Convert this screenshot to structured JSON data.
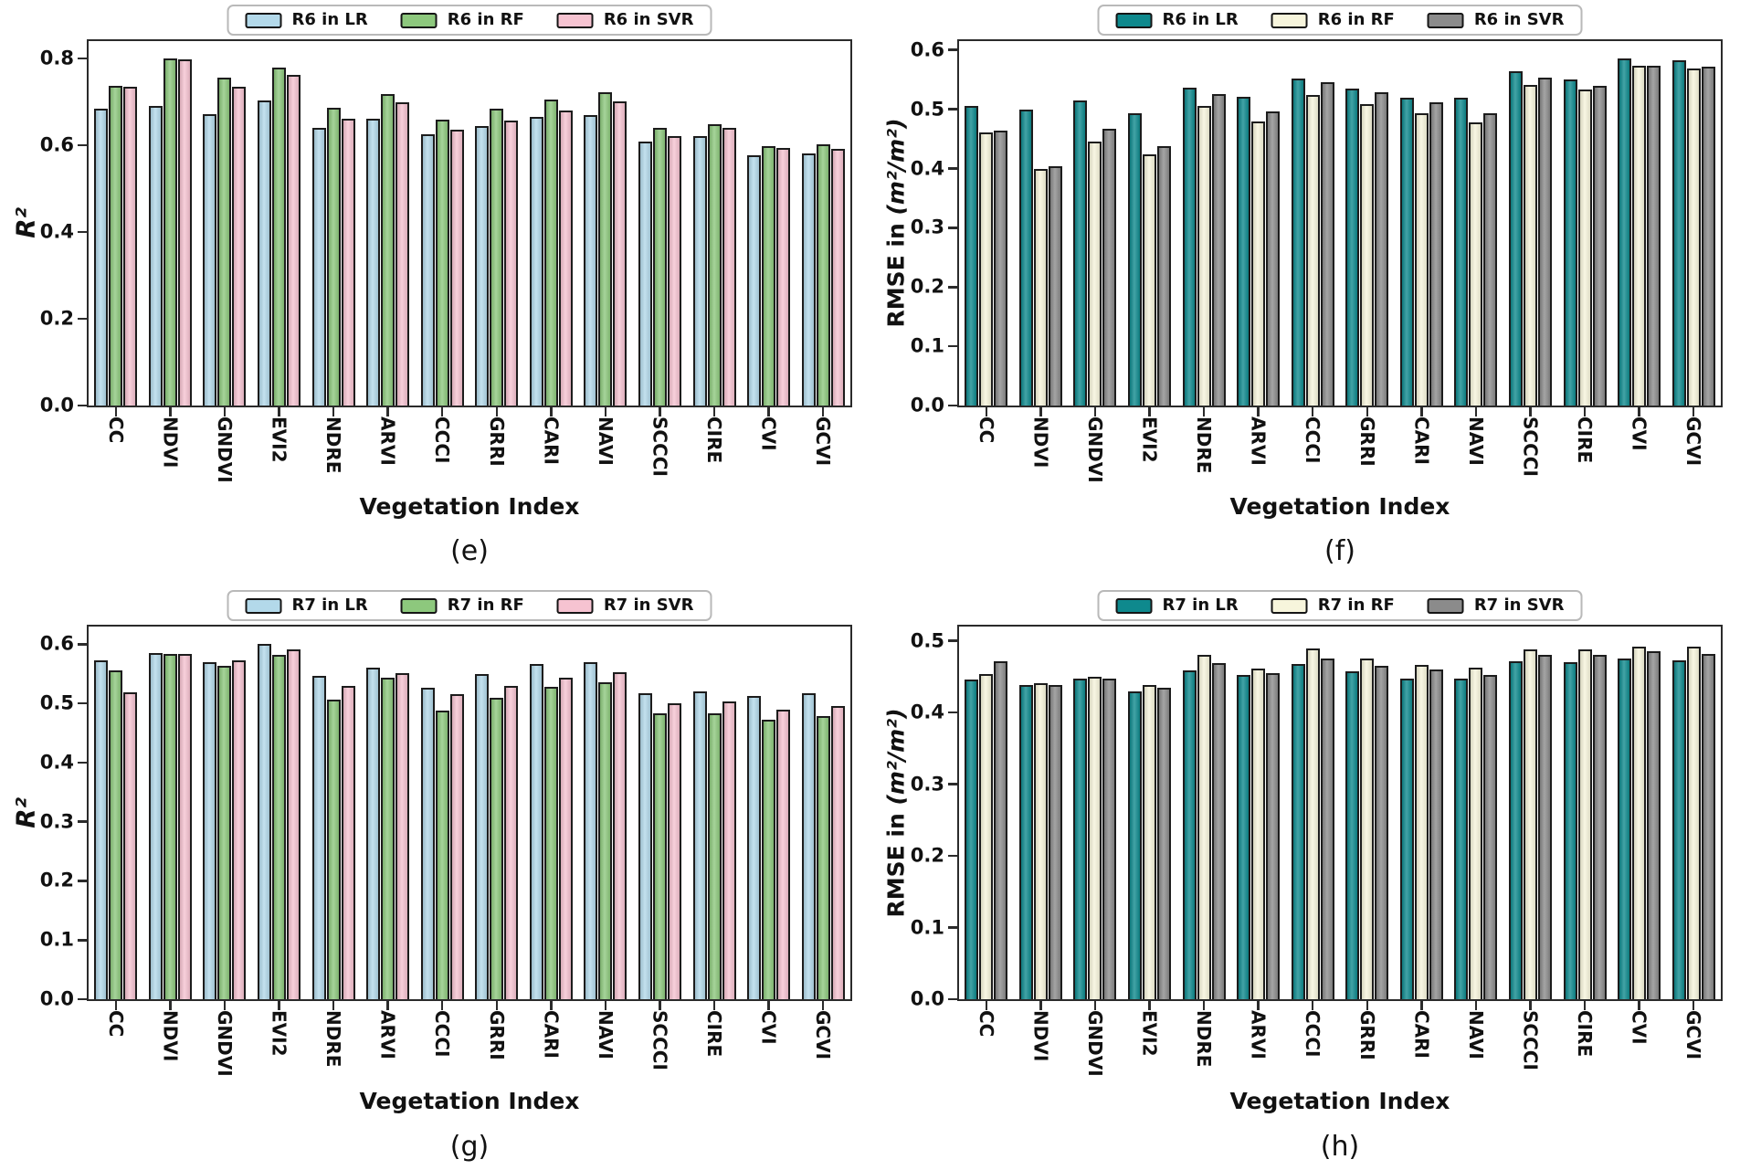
{
  "figure": {
    "background": "#ffffff",
    "bar_edge_color": "#1c1c1c",
    "axis_color": "#2b2b2b",
    "colors": {
      "r2_lr_lightblue": "#b3d9ea",
      "r2_rf_green": "#8dc87d",
      "r2_svr_pink": "#f6c3d1",
      "rmse_lr_teal": "#0e898d",
      "rmse_rf_cream": "#f7f5dc",
      "rmse_svr_gray": "#8b8b8b"
    }
  },
  "chart_data": [
    {
      "type": "bar",
      "caption": "(e)",
      "xlabel": "Vegetation Index",
      "ylabel": "R²",
      "ylabel_prefix": "",
      "ylabel_math": "R²",
      "ylim": [
        0,
        0.84
      ],
      "yticks": [
        0.0,
        0.2,
        0.4,
        0.6,
        0.8
      ],
      "ytick_labels": [
        "0.0",
        "0.2",
        "0.4",
        "0.6",
        "0.8"
      ],
      "legend_position": "top",
      "grid": false,
      "categories": [
        "CC",
        "NDVI",
        "GNDVI",
        "EVI2",
        "NDRE",
        "ARVI",
        "CCCI",
        "GRRI",
        "CARI",
        "NAVI",
        "SCCCI",
        "CIRE",
        "CVI",
        "GCVI"
      ],
      "series": [
        {
          "name": "R6 in LR",
          "color": "#b3d9ea",
          "values": [
            0.685,
            0.69,
            0.672,
            0.703,
            0.641,
            0.662,
            0.626,
            0.644,
            0.665,
            0.669,
            0.608,
            0.622,
            0.577,
            0.581
          ]
        },
        {
          "name": "R6 in RF",
          "color": "#8dc87d",
          "values": [
            0.736,
            0.801,
            0.756,
            0.779,
            0.686,
            0.718,
            0.66,
            0.684,
            0.706,
            0.722,
            0.64,
            0.648,
            0.597,
            0.602
          ]
        },
        {
          "name": "R6 in SVR",
          "color": "#f6c3d1",
          "values": [
            0.735,
            0.797,
            0.734,
            0.763,
            0.661,
            0.7,
            0.635,
            0.656,
            0.68,
            0.701,
            0.622,
            0.64,
            0.593,
            0.592
          ]
        }
      ]
    },
    {
      "type": "bar",
      "caption": "(f)",
      "xlabel": "Vegetation Index",
      "ylabel": "RMSE in (m²/m²)",
      "ylabel_prefix": "RMSE in ",
      "ylabel_math": "(m²/m²)",
      "ylim": [
        0,
        0.615
      ],
      "yticks": [
        0.0,
        0.1,
        0.2,
        0.3,
        0.4,
        0.5,
        0.6
      ],
      "ytick_labels": [
        "0.0",
        "0.1",
        "0.2",
        "0.3",
        "0.4",
        "0.5",
        "0.6"
      ],
      "legend_position": "top",
      "grid": false,
      "categories": [
        "CC",
        "NDVI",
        "GNDVI",
        "EVI2",
        "NDRE",
        "ARVI",
        "CCCI",
        "GRRI",
        "CARI",
        "NAVI",
        "SCCCI",
        "CIRE",
        "CVI",
        "GCVI"
      ],
      "series": [
        {
          "name": "R6 in LR",
          "color": "#0e898d",
          "values": [
            0.505,
            0.499,
            0.515,
            0.493,
            0.536,
            0.521,
            0.552,
            0.535,
            0.52,
            0.52,
            0.564,
            0.551,
            0.585,
            0.582
          ]
        },
        {
          "name": "R6 in RF",
          "color": "#f7f5dc",
          "values": [
            0.461,
            0.4,
            0.445,
            0.424,
            0.505,
            0.48,
            0.524,
            0.508,
            0.493,
            0.478,
            0.541,
            0.534,
            0.573,
            0.569
          ]
        },
        {
          "name": "R6 in SVR",
          "color": "#8b8b8b",
          "values": [
            0.464,
            0.404,
            0.467,
            0.438,
            0.526,
            0.496,
            0.546,
            0.528,
            0.511,
            0.494,
            0.554,
            0.539,
            0.573,
            0.572
          ]
        }
      ]
    },
    {
      "type": "bar",
      "caption": "(g)",
      "xlabel": "Vegetation Index",
      "ylabel": "R²",
      "ylabel_prefix": "",
      "ylabel_math": "R²",
      "ylim": [
        0,
        0.63
      ],
      "yticks": [
        0.0,
        0.1,
        0.2,
        0.3,
        0.4,
        0.5,
        0.6
      ],
      "ytick_labels": [
        "0.0",
        "0.1",
        "0.2",
        "0.3",
        "0.4",
        "0.5",
        "0.6"
      ],
      "legend_position": "top",
      "grid": false,
      "categories": [
        "CC",
        "NDVI",
        "GNDVI",
        "EVI2",
        "NDRE",
        "ARVI",
        "CCCI",
        "GRRI",
        "CARI",
        "NAVI",
        "SCCCI",
        "CIRE",
        "CVI",
        "GCVI"
      ],
      "series": [
        {
          "name": "R7 in LR",
          "color": "#b3d9ea",
          "values": [
            0.573,
            0.586,
            0.57,
            0.601,
            0.546,
            0.561,
            0.526,
            0.55,
            0.567,
            0.57,
            0.517,
            0.521,
            0.512,
            0.517
          ]
        },
        {
          "name": "R7 in RF",
          "color": "#8dc87d",
          "values": [
            0.556,
            0.583,
            0.564,
            0.582,
            0.507,
            0.543,
            0.488,
            0.51,
            0.528,
            0.536,
            0.483,
            0.484,
            0.473,
            0.478
          ]
        },
        {
          "name": "R7 in SVR",
          "color": "#f6c3d1",
          "values": [
            0.519,
            0.583,
            0.573,
            0.592,
            0.529,
            0.552,
            0.515,
            0.529,
            0.543,
            0.553,
            0.501,
            0.503,
            0.49,
            0.496
          ]
        }
      ]
    },
    {
      "type": "bar",
      "caption": "(h)",
      "xlabel": "Vegetation Index",
      "ylabel": "RMSE in (m²/m²)",
      "ylabel_prefix": "RMSE in ",
      "ylabel_math": "(m²/m²)",
      "ylim": [
        0,
        0.52
      ],
      "yticks": [
        0.0,
        0.1,
        0.2,
        0.3,
        0.4,
        0.5
      ],
      "ytick_labels": [
        "0.0",
        "0.1",
        "0.2",
        "0.3",
        "0.4",
        "0.5"
      ],
      "legend_position": "top",
      "grid": false,
      "categories": [
        "CC",
        "NDVI",
        "GNDVI",
        "EVI2",
        "NDRE",
        "ARVI",
        "CCCI",
        "GRRI",
        "CARI",
        "NAVI",
        "SCCCI",
        "CIRE",
        "CVI",
        "GCVI"
      ],
      "series": [
        {
          "name": "R7 in LR",
          "color": "#0e898d",
          "values": [
            0.446,
            0.439,
            0.447,
            0.429,
            0.459,
            0.452,
            0.468,
            0.457,
            0.447,
            0.447,
            0.472,
            0.47,
            0.476,
            0.473
          ]
        },
        {
          "name": "R7 in RF",
          "color": "#f7f5dc",
          "values": [
            0.454,
            0.441,
            0.45,
            0.439,
            0.481,
            0.461,
            0.49,
            0.476,
            0.466,
            0.463,
            0.488,
            0.488,
            0.492,
            0.492
          ]
        },
        {
          "name": "R7 in SVR",
          "color": "#8b8b8b",
          "values": [
            0.472,
            0.439,
            0.447,
            0.434,
            0.469,
            0.455,
            0.475,
            0.465,
            0.46,
            0.453,
            0.481,
            0.481,
            0.485,
            0.482
          ]
        }
      ]
    }
  ]
}
